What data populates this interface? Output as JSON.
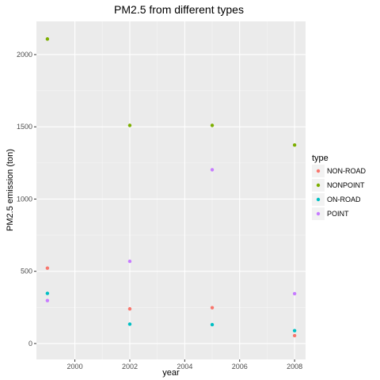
{
  "chart_data": {
    "type": "scatter",
    "title": "PM2.5 from different types",
    "xlabel": "year",
    "ylabel": "PM2.5 emission (ton)",
    "xlim": [
      1998.6,
      2008.4
    ],
    "ylim": [
      -110,
      2230
    ],
    "x_ticks": [
      2000,
      2002,
      2004,
      2006,
      2008
    ],
    "y_ticks": [
      0,
      500,
      1000,
      1500,
      2000
    ],
    "grid": true,
    "background": "#ebebeb",
    "legend": {
      "title": "type",
      "placement": "right"
    },
    "series": [
      {
        "name": "NON-ROAD",
        "color": "#F8766D",
        "x": [
          1999,
          2002,
          2005,
          2008
        ],
        "y": [
          522,
          240,
          248,
          55
        ]
      },
      {
        "name": "NONPOINT",
        "color": "#7CAE00",
        "x": [
          1999,
          2002,
          2005,
          2008
        ],
        "y": [
          2108,
          1510,
          1510,
          1374
        ]
      },
      {
        "name": "ON-ROAD",
        "color": "#00BFC4",
        "x": [
          1999,
          2002,
          2005,
          2008
        ],
        "y": [
          347,
          134,
          131,
          89
        ]
      },
      {
        "name": "POINT",
        "color": "#C77CFF",
        "x": [
          1999,
          2002,
          2005,
          2008
        ],
        "y": [
          297,
          569,
          1203,
          345
        ]
      }
    ]
  }
}
